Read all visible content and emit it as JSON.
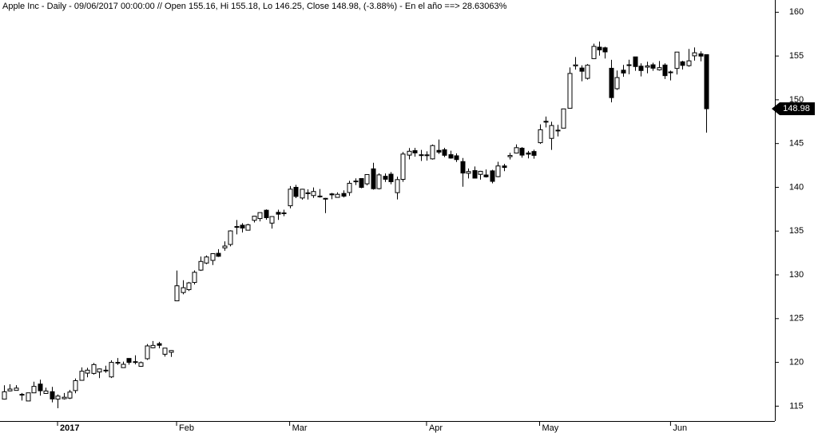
{
  "chart_data": {
    "type": "candlestick",
    "title": "Apple Inc - Daily - 09/06/2017 00:00:00 // Open 155.16, Hi 155.18, Lo 146.25, Close 148.98, (-3.88%) - En el año ==> 28.63063%",
    "categories": [
      null,
      null,
      null,
      null,
      null,
      null,
      null,
      null,
      null,
      "2017",
      null,
      null,
      null,
      null,
      null,
      null,
      null,
      null,
      null,
      null,
      null,
      null,
      null,
      null,
      null,
      null,
      null,
      null,
      null,
      "Feb",
      null,
      null,
      null,
      null,
      null,
      null,
      null,
      null,
      null,
      null,
      null,
      null,
      null,
      null,
      null,
      null,
      null,
      null,
      "Mar",
      null,
      null,
      null,
      null,
      null,
      null,
      null,
      null,
      null,
      null,
      null,
      null,
      null,
      null,
      null,
      null,
      null,
      null,
      null,
      null,
      null,
      null,
      "Apr",
      null,
      null,
      null,
      null,
      null,
      null,
      null,
      null,
      null,
      null,
      null,
      null,
      null,
      null,
      null,
      null,
      null,
      null,
      "May",
      null,
      null,
      null,
      null,
      null,
      null,
      null,
      null,
      null,
      null,
      null,
      null,
      null,
      null,
      null,
      null,
      null,
      null,
      null,
      null,
      null,
      "Jun",
      null,
      null,
      null,
      null,
      null,
      null
    ],
    "open": [
      115.8,
      116.74,
      116.8,
      116.35,
      115.59,
      116.52,
      117.52,
      116.45,
      116.65,
      115.8,
      115.85,
      115.92,
      116.78,
      117.95,
      118.77,
      118.74,
      118.9,
      119.11,
      118.34,
      120,
      119.4,
      120.45,
      120,
      119.55,
      120.42,
      121.67,
      122.14,
      120.93,
      121.15,
      127.03,
      127.98,
      128.31,
      129.13,
      130.54,
      131.35,
      131.65,
      132.46,
      133.08,
      133.47,
      135.52,
      135.67,
      135.1,
      136.23,
      136.43,
      137.38,
      135.91,
      137.14,
      137.08,
      137.89,
      140,
      138.78,
      139.37,
      139.06,
      138.95,
      138.74,
      139.25,
      138.85,
      139.3,
      139.41,
      140.72,
      141,
      140.4,
      142.11,
      139.85,
      141.26,
      141.5,
      139.39,
      140.91,
      143.68,
      144.19,
      143.72,
      143.71,
      143.25,
      144.22,
      144.29,
      143.73,
      143.6,
      142.94,
      141.6,
      141.91,
      141.48,
      141.41,
      141.88,
      141.22,
      142.44,
      143.5,
      143.91,
      144.47,
      143.92,
      144.09,
      145.1,
      147.54,
      145.59,
      146.52,
      146.76,
      149.03,
      153.87,
      153.63,
      152.45,
      154.7,
      156.01,
      155.94,
      153.6,
      151.27,
      153.38,
      154,
      154.9,
      153.84,
      153.73,
      154,
      153.42,
      153.97,
      153.17,
      153.58,
      154.34,
      153.9,
      155.02,
      155.25,
      155.16
    ],
    "high": [
      117.38,
      117.5,
      117.4,
      116.51,
      116.52,
      117.8,
      118.02,
      117.11,
      117.2,
      116.33,
      116.51,
      116.86,
      118.16,
      119.43,
      119.38,
      119.93,
      119.3,
      119.62,
      120.24,
      120.5,
      120.09,
      120.45,
      120.81,
      120.1,
      122.1,
      122.44,
      122.35,
      121.63,
      121.39,
      130.49,
      129.39,
      129.19,
      130.5,
      132.09,
      132.22,
      132.45,
      132.94,
      133.82,
      135.09,
      136.27,
      135.9,
      135.83,
      136.75,
      137.12,
      137.48,
      136.66,
      137.44,
      137.44,
      140.15,
      140.28,
      139.83,
      139.77,
      139.98,
      139.8,
      138.79,
      139.36,
      139.43,
      139.65,
      140.75,
      141.02,
      141,
      141.5,
      142.8,
      141.6,
      141.58,
      141.74,
      141.22,
      144.04,
      144.49,
      144.5,
      144.27,
      144.12,
      144.89,
      145.46,
      144.52,
      144.18,
      143.88,
      143.35,
      142.15,
      142.38,
      141.88,
      142.04,
      142,
      142.92,
      142.68,
      143.95,
      144.9,
      144.6,
      144.16,
      144.3,
      147.2,
      148.09,
      147.49,
      147.14,
      148.98,
      153.7,
      154.88,
      153.94,
      154.07,
      156.42,
      156.65,
      156.06,
      154.57,
      153.34,
      153.98,
      154.58,
      154.9,
      154.17,
      154.35,
      154.24,
      154.43,
      154.17,
      153.33,
      155.45,
      154.45,
      155.81,
      155.98,
      155.54,
      155.18
    ],
    "low": [
      115.75,
      116.68,
      116.78,
      115.64,
      115.59,
      116.49,
      116.2,
      116.4,
      115.43,
      114.76,
      115.75,
      115.81,
      116.47,
      117.94,
      118.3,
      118.6,
      118.21,
      118.81,
      118.22,
      119.71,
      119.37,
      119.73,
      119.77,
      119.5,
      120.28,
      121.6,
      121.6,
      120.66,
      120.62,
      127.01,
      127.78,
      128.16,
      128.9,
      130.45,
      131.22,
      131.12,
      132.05,
      132.75,
      133.25,
      134.62,
      134.84,
      135.1,
      135.98,
      136.11,
      136.3,
      135.28,
      136.28,
      136.7,
      137.6,
      138.76,
      138.59,
      138.6,
      138.79,
      138.82,
      137.05,
      138.64,
      138.82,
      138.84,
      139.03,
      140.26,
      139.89,
      140.23,
      139.73,
      139.76,
      140.61,
      140.35,
      138.62,
      140.62,
      143.19,
      143.5,
      143.01,
      143.05,
      143.17,
      143.81,
      143.45,
      143.27,
      142.9,
      140.06,
      141.01,
      141.05,
      140.87,
      141.11,
      140.45,
      141.16,
      141.85,
      143.18,
      143.87,
      143.38,
      143.31,
      143.27,
      144.96,
      146.84,
      144.27,
      145.81,
      146.76,
      149.03,
      153.45,
      152.11,
      152.31,
      154.67,
      155.05,
      154.72,
      149.71,
      151.13,
      152.63,
      152.91,
      153.31,
      152.67,
      153.03,
      153.31,
      153.33,
      152.38,
      152.22,
      152.89,
      153.46,
      153.78,
      154.48,
      154.4,
      146.25
    ],
    "close": [
      116.64,
      116.95,
      117.06,
      116.29,
      116.52,
      117.26,
      116.76,
      116.73,
      115.82,
      116.15,
      116.02,
      116.61,
      117.91,
      118.99,
      119.11,
      119.75,
      119.25,
      119.04,
      120,
      119.99,
      119.78,
      120,
      120.08,
      119.97,
      121.88,
      121.94,
      121.95,
      121.63,
      121.35,
      128.75,
      128.53,
      129.08,
      130.29,
      131.53,
      132.04,
      132.42,
      132.12,
      133.29,
      135.02,
      135.51,
      135.35,
      135.72,
      136.7,
      137.11,
      136.53,
      136.66,
      136.93,
      136.99,
      139.79,
      138.96,
      139.78,
      139.34,
      139.52,
      139,
      138.68,
      139.14,
      139.2,
      138.99,
      140.46,
      140.69,
      139.99,
      141.46,
      139.84,
      141.42,
      140.92,
      140.64,
      140.88,
      143.8,
      144.12,
      143.93,
      143.66,
      143.7,
      144.77,
      144.02,
      143.66,
      143.34,
      143.17,
      141.63,
      141.8,
      141.05,
      141.83,
      141.2,
      140.68,
      142.44,
      142.27,
      143.64,
      144.53,
      143.68,
      143.79,
      143.65,
      146.58,
      147.51,
      147.06,
      146.53,
      148.96,
      153.01,
      153.99,
      153.26,
      153.95,
      156.1,
      155.7,
      155.47,
      150.25,
      152.54,
      153.06,
      153.99,
      153.8,
      153.34,
      153.87,
      153.61,
      153.67,
      152.76,
      153.18,
      155.45,
      153.93,
      154.45,
      155.37,
      154.99,
      148.98
    ],
    "ylim": [
      113.3,
      161.4
    ],
    "yticks": [
      115,
      120,
      125,
      130,
      135,
      140,
      145,
      150,
      155,
      160
    ],
    "up_color": "#ffffff",
    "down_color": "#000000"
  }
}
